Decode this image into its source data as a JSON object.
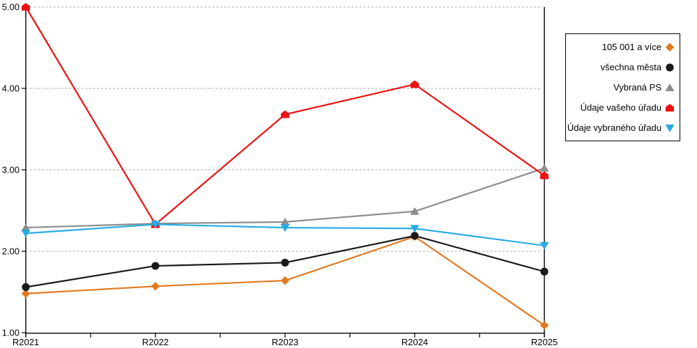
{
  "chart_data": {
    "type": "line",
    "title": "",
    "xlabel": "",
    "ylabel": "",
    "categories": [
      "R2021",
      "R2022",
      "R2023",
      "R2024",
      "R2025"
    ],
    "y_tick_labels": [
      "1.00",
      "2.00",
      "3.00",
      "4.00",
      "5.00"
    ],
    "ylim": [
      1.0,
      5.0
    ],
    "grid": "horizontal-dotted",
    "gridline_color": "#b3b3b3",
    "axis_color": "#000000",
    "background_color": "#ffffff",
    "legend_position": "top-right",
    "series": [
      {
        "name": "105 001 a více",
        "color": "#E2791F",
        "marker": "diamond",
        "values": [
          1.48,
          1.57,
          1.64,
          2.18,
          1.09
        ]
      },
      {
        "name": "všechna města",
        "color": "#1A1A1A",
        "marker": "circle",
        "values": [
          1.56,
          1.82,
          1.86,
          2.19,
          1.75
        ]
      },
      {
        "name": "Vybraná PS",
        "color": "#8C8C8C",
        "marker": "triangle-up",
        "values": [
          2.29,
          2.34,
          2.36,
          2.49,
          3.02
        ]
      },
      {
        "name": "Údaje vašeho úřadu",
        "color": "#EE1111",
        "marker": "pentagon",
        "values": [
          5.0,
          2.33,
          3.68,
          4.05,
          2.93
        ]
      },
      {
        "name": "Údaje vybraného úřadu",
        "color": "#29ABE2",
        "marker": "triangle-down",
        "values": [
          2.22,
          2.33,
          2.29,
          2.28,
          2.07
        ]
      }
    ]
  }
}
